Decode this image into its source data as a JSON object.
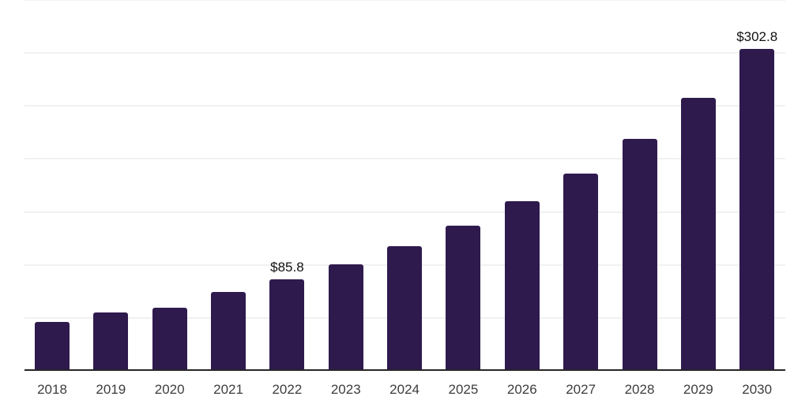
{
  "chart_data": {
    "type": "bar",
    "title": "",
    "xlabel": "",
    "ylabel": "",
    "categories": [
      "2018",
      "2019",
      "2020",
      "2021",
      "2022",
      "2023",
      "2024",
      "2025",
      "2026",
      "2027",
      "2028",
      "2029",
      "2030"
    ],
    "values": [
      45.7,
      54.4,
      58.7,
      73.8,
      85.8,
      99.9,
      116.9,
      136.0,
      159.1,
      185.7,
      218.3,
      256.8,
      302.8
    ],
    "value_labels": [
      "",
      "",
      "",
      "",
      "$85.8",
      "",
      "",
      "",
      "",
      "",
      "",
      "",
      "$302.8"
    ],
    "ylim": [
      0,
      350
    ],
    "gridline_step": 50,
    "grid": "horizontal",
    "legend": "none",
    "colors": {
      "bar": "#2f1a4e",
      "axis": "#262626",
      "gridline": "#f1f1f1",
      "tick_label": "#3d3d3d",
      "value_label": "#111111",
      "background": "#ffffff"
    }
  }
}
